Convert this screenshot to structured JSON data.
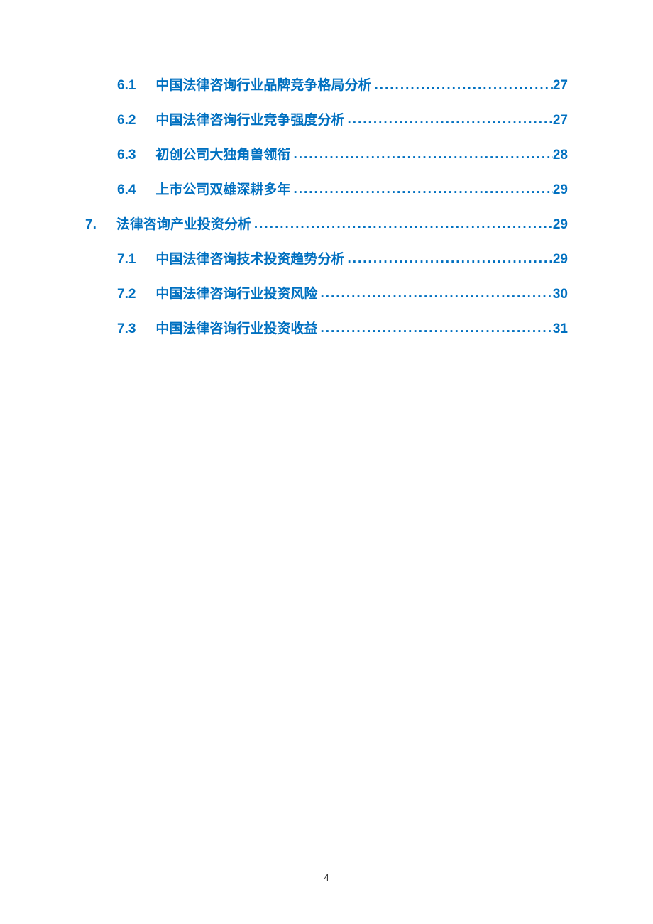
{
  "toc": {
    "items": [
      {
        "number": "6.1",
        "title": "中国法律咨询行业品牌竞争格局分析",
        "page": "27",
        "level": 2
      },
      {
        "number": "6.2",
        "title": "中国法律咨询行业竞争强度分析",
        "page": "27",
        "level": 2
      },
      {
        "number": "6.3",
        "title": "初创公司大独角兽领衔",
        "page": "28",
        "level": 2
      },
      {
        "number": "6.4",
        "title": "上市公司双雄深耕多年",
        "page": "29",
        "level": 2
      },
      {
        "number": "7.",
        "title": "法律咨询产业投资分析",
        "page": "29",
        "level": 1
      },
      {
        "number": "7.1",
        "title": "中国法律咨询技术投资趋势分析",
        "page": "29",
        "level": 2
      },
      {
        "number": "7.2",
        "title": "中国法律咨询行业投资风险",
        "page": "30",
        "level": 2
      },
      {
        "number": "7.3",
        "title": "中国法律咨询行业投资收益",
        "page": "31",
        "level": 2
      }
    ]
  },
  "colors": {
    "link_color": "#0070c0",
    "background": "#ffffff",
    "page_number_color": "#333333"
  },
  "typography": {
    "toc_fontsize": 19,
    "toc_fontweight": "bold",
    "page_number_fontsize": 13
  },
  "page_number": "4"
}
